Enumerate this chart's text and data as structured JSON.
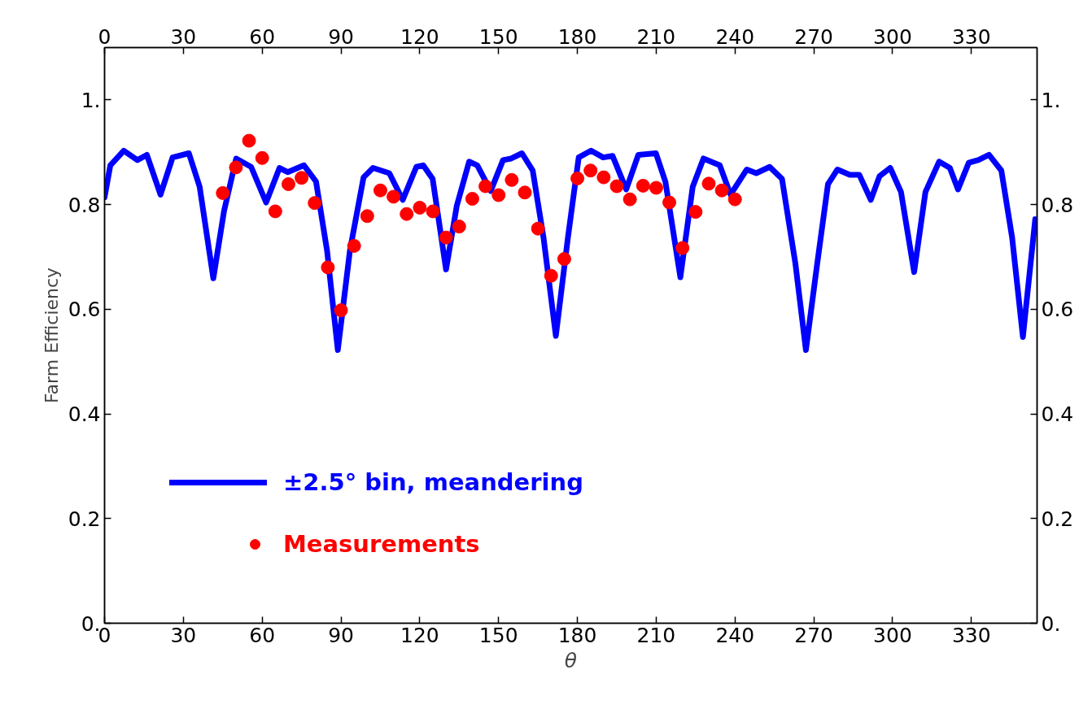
{
  "chart_data": {
    "type": "line",
    "xlabel": "θ",
    "ylabel": "Farm Efficiency",
    "xlim": [
      0,
      355
    ],
    "xticks": [
      0,
      30,
      60,
      90,
      120,
      150,
      180,
      210,
      240,
      270,
      300,
      330
    ],
    "x2lim": [
      0,
      355
    ],
    "x2ticks": [
      0,
      30,
      60,
      90,
      120,
      150,
      180,
      210,
      240,
      270,
      300,
      330
    ],
    "ylim": [
      0,
      1.1
    ],
    "yticks": [
      {
        "value": 0,
        "label": "0."
      },
      0.2,
      0.4,
      0.6,
      0.8,
      {
        "value": 1,
        "label": "1."
      }
    ],
    "y2lim": [
      0,
      1.1
    ],
    "y2ticks": [
      {
        "value": 0,
        "label": "0."
      },
      0.2,
      0.4,
      0.6,
      0.8,
      {
        "value": 1,
        "label": "1."
      }
    ],
    "grid": false,
    "legend": "bottom left",
    "series": [
      {
        "name": "±2.5° bin, meandering",
        "color": "#0000ff",
        "marker": "none",
        "line_style": "solid",
        "x": [
          0,
          2.2,
          7.3,
          12.5,
          16.1,
          21.3,
          25.9,
          32.1,
          36.2,
          41.4,
          45.5,
          50.1,
          55.8,
          61.5,
          66.6,
          69.7,
          75.9,
          80.5,
          84.7,
          88.8,
          93.4,
          98.6,
          102.2,
          108.4,
          113.5,
          118.7,
          121.3,
          124.9,
          130,
          134.1,
          138.8,
          141.9,
          147,
          151.7,
          154.8,
          158.9,
          163,
          167.1,
          171.8,
          176.4,
          180.5,
          185.2,
          189.8,
          193.4,
          198.6,
          203.2,
          209.9,
          213.5,
          219.2,
          223.9,
          228,
          234.2,
          238.3,
          244.5,
          248.1,
          253.2,
          257.9,
          263,
          267,
          271.3,
          275.4,
          279,
          283.7,
          287.3,
          291.7,
          295,
          299.1,
          303.2,
          308.2,
          312.5,
          317.7,
          321.8,
          324.9,
          329,
          332.6,
          336.7,
          341.4,
          345.5,
          349.6,
          354.3
        ],
        "values": [
          0.814,
          0.875,
          0.903,
          0.885,
          0.895,
          0.819,
          0.89,
          0.898,
          0.834,
          0.659,
          0.788,
          0.888,
          0.872,
          0.804,
          0.87,
          0.862,
          0.875,
          0.844,
          0.712,
          0.522,
          0.712,
          0.852,
          0.87,
          0.86,
          0.809,
          0.872,
          0.875,
          0.849,
          0.676,
          0.798,
          0.882,
          0.875,
          0.826,
          0.885,
          0.888,
          0.898,
          0.865,
          0.737,
          0.549,
          0.737,
          0.89,
          0.903,
          0.89,
          0.893,
          0.829,
          0.895,
          0.898,
          0.844,
          0.661,
          0.834,
          0.888,
          0.875,
          0.819,
          0.867,
          0.86,
          0.872,
          0.849,
          0.687,
          0.522,
          0.687,
          0.839,
          0.867,
          0.857,
          0.857,
          0.809,
          0.854,
          0.87,
          0.824,
          0.671,
          0.824,
          0.882,
          0.87,
          0.829,
          0.88,
          0.885,
          0.895,
          0.865,
          0.737,
          0.547,
          0.772
        ]
      },
      {
        "name": "Measurements",
        "type": "scatter",
        "color": "#ff0000",
        "marker": "circle",
        "x": [
          45,
          50,
          55,
          60,
          65,
          70,
          75,
          80,
          85,
          90,
          95,
          100,
          105,
          110,
          115,
          120,
          125,
          130,
          135,
          140,
          145,
          150,
          155,
          160,
          165,
          170,
          175,
          180,
          185,
          190,
          195,
          200,
          205,
          210,
          215,
          220,
          225,
          230,
          235,
          240
        ],
        "values": [
          0.822,
          0.871,
          0.922,
          0.889,
          0.787,
          0.839,
          0.851,
          0.803,
          0.68,
          0.598,
          0.721,
          0.778,
          0.827,
          0.815,
          0.782,
          0.794,
          0.787,
          0.737,
          0.758,
          0.811,
          0.835,
          0.818,
          0.847,
          0.823,
          0.754,
          0.664,
          0.696,
          0.85,
          0.865,
          0.852,
          0.835,
          0.81,
          0.836,
          0.832,
          0.804,
          0.717,
          0.786,
          0.84,
          0.827,
          0.81
        ]
      }
    ]
  }
}
